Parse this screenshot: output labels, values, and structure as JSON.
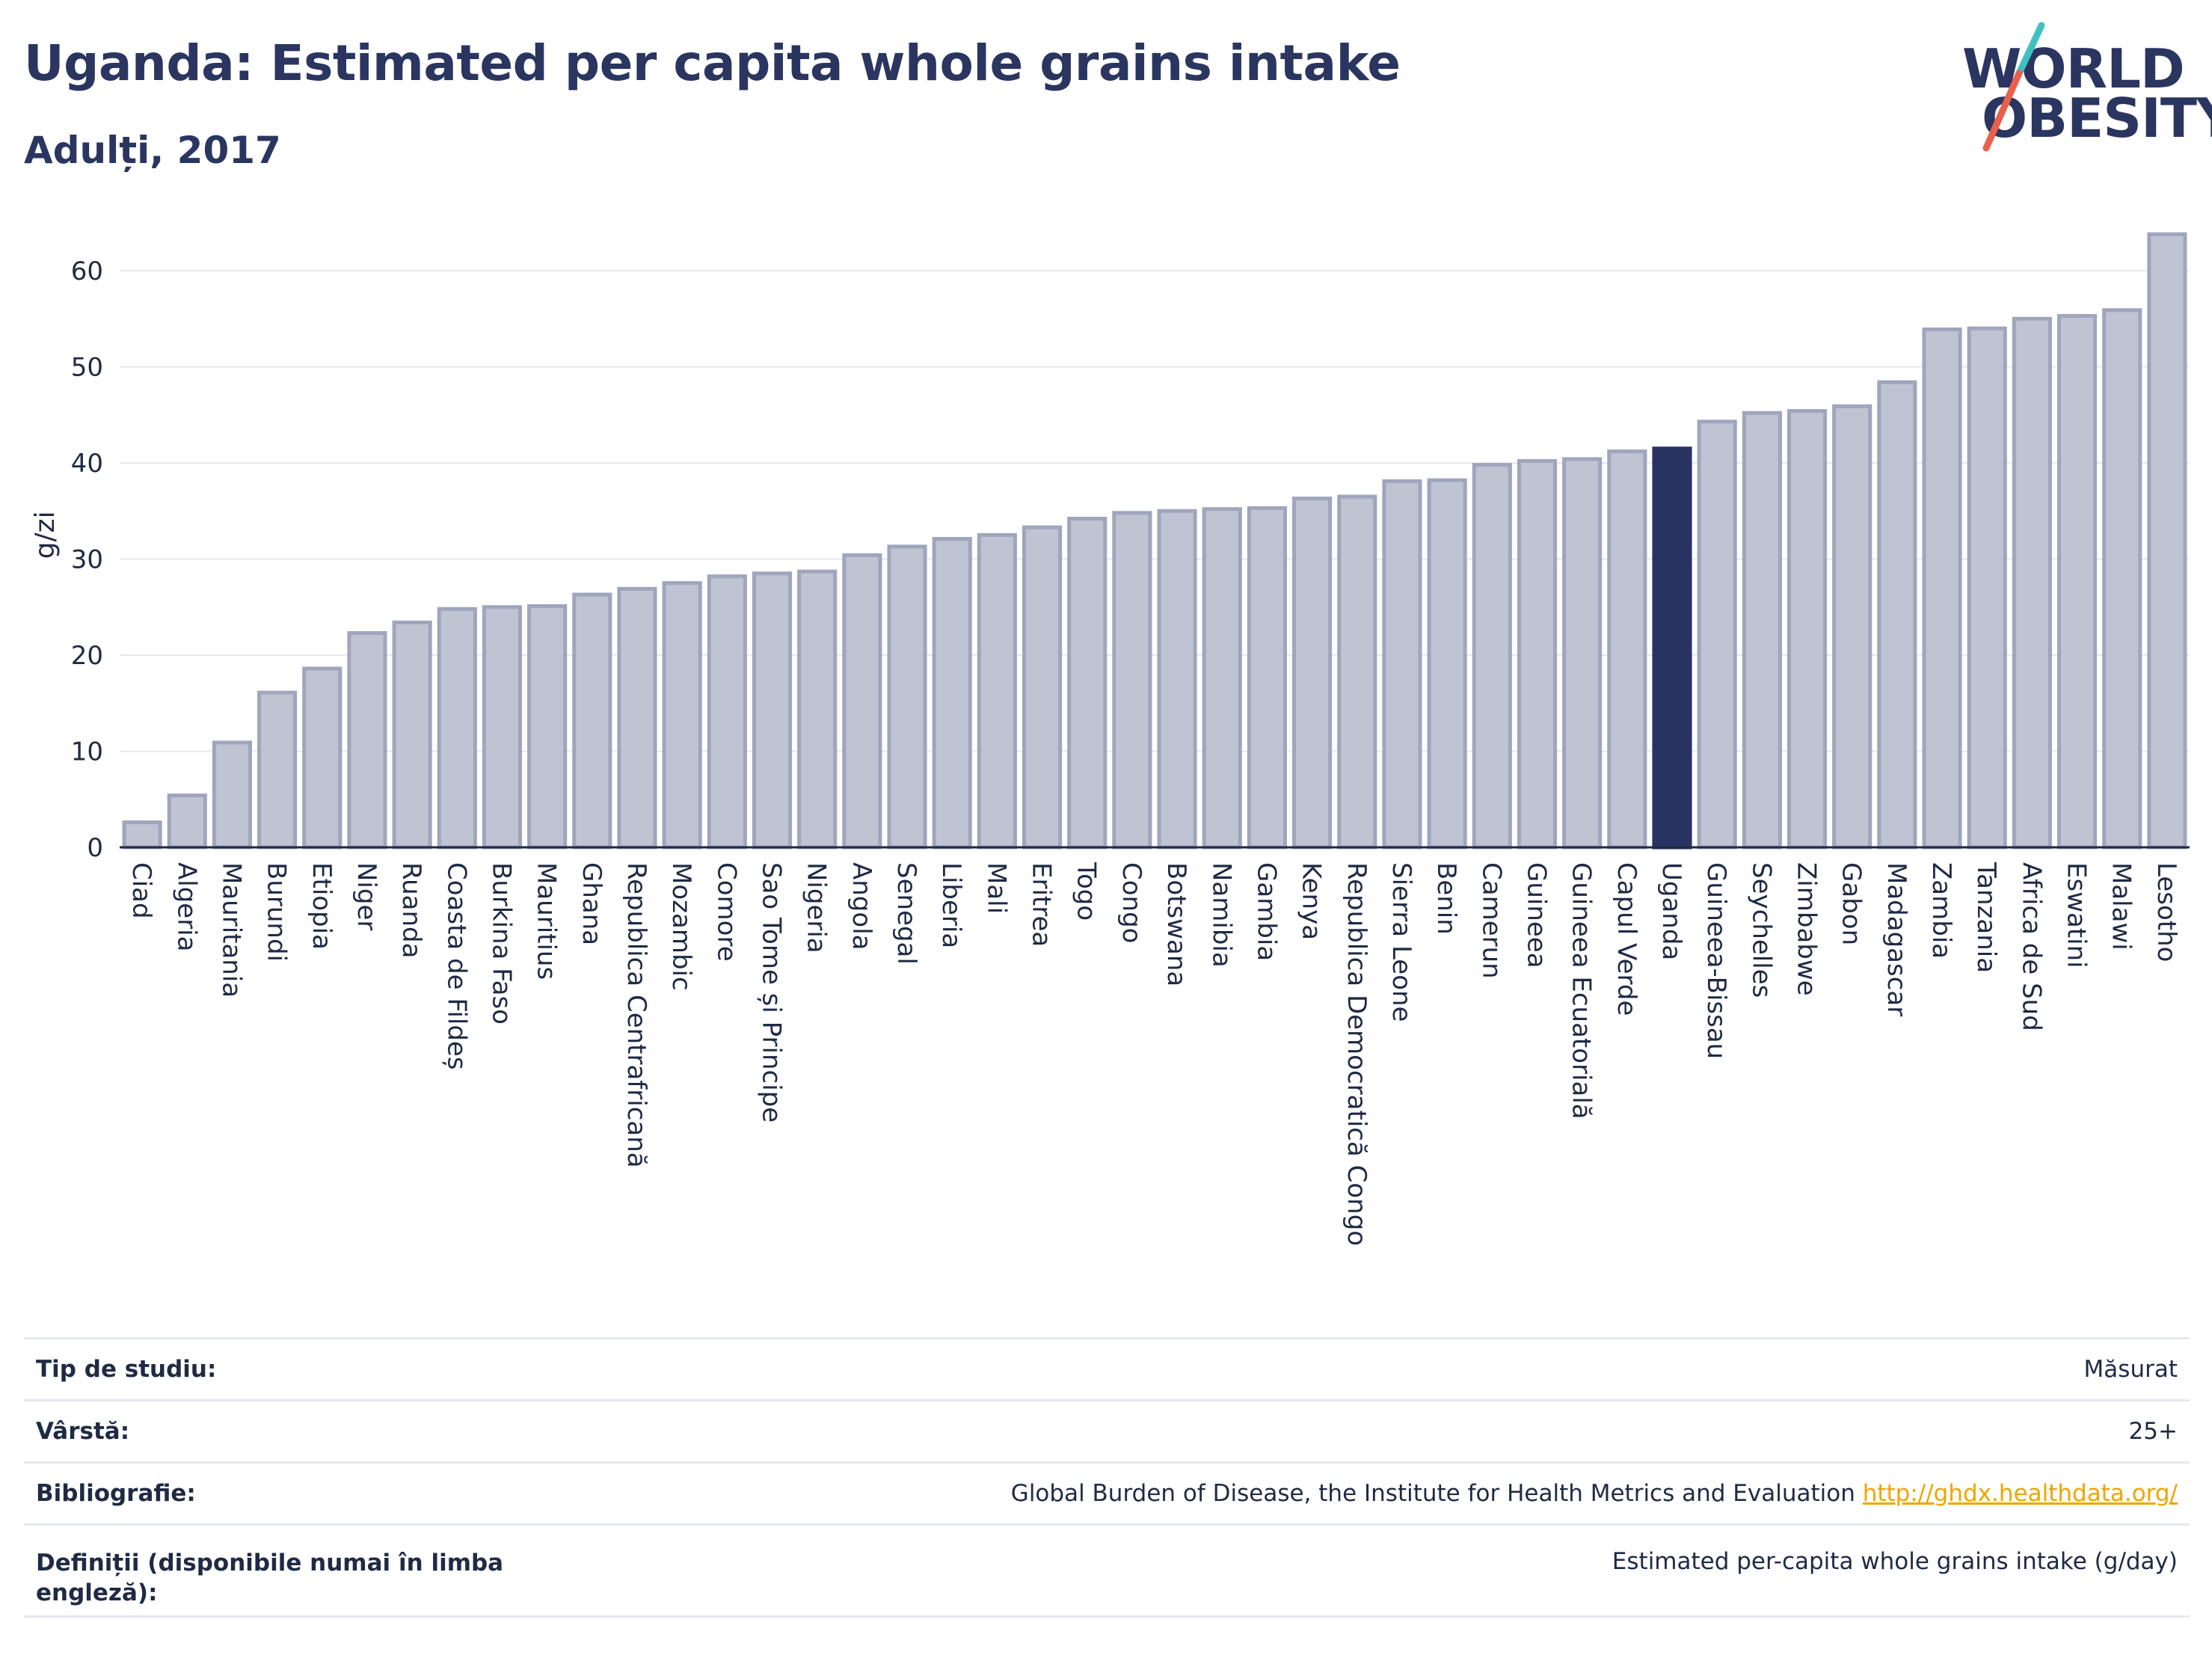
{
  "title": "Uganda: Estimated per capita whole grains intake",
  "subtitle": "Adulți, 2017",
  "logo": {
    "line1": "WORLD",
    "line2": "OBESITY",
    "accent_colors": [
      "#3fc1c0",
      "#e8604c"
    ]
  },
  "colors": {
    "bar": "#bfc3d2",
    "bar_border": "#9fa5bc",
    "highlight": "#283361",
    "grid": "#e6e8ef",
    "axis": "#1f2a44"
  },
  "chart_data": {
    "type": "bar",
    "ylabel": "g/zi",
    "xlabel": "",
    "ylim": [
      0,
      65
    ],
    "yticks": [
      0,
      10,
      20,
      30,
      40,
      50,
      60
    ],
    "highlight": "Uganda",
    "categories": [
      "Ciad",
      "Algeria",
      "Mauritania",
      "Burundi",
      "Etiopia",
      "Niger",
      "Ruanda",
      "Coasta de Fildeș",
      "Burkina Faso",
      "Mauritius",
      "Ghana",
      "Republica Centrafricană",
      "Mozambic",
      "Comore",
      "Sao Tome și Principe",
      "Nigeria",
      "Angola",
      "Senegal",
      "Liberia",
      "Mali",
      "Eritrea",
      "Togo",
      "Congo",
      "Botswana",
      "Namibia",
      "Gambia",
      "Kenya",
      "Republica Democratică Congo",
      "Sierra Leone",
      "Benin",
      "Camerun",
      "Guineea",
      "Guineea Ecuatorială",
      "Capul Verde",
      "Uganda",
      "Guineea-Bissau",
      "Seychelles",
      "Zimbabwe",
      "Gabon",
      "Madagascar",
      "Zambia",
      "Tanzania",
      "Africa de Sud",
      "Eswatini",
      "Malawi",
      "Lesotho"
    ],
    "values": [
      2.6,
      5.4,
      10.9,
      16.1,
      18.6,
      22.3,
      23.4,
      24.8,
      25.0,
      25.1,
      26.3,
      26.9,
      27.5,
      28.2,
      28.5,
      28.7,
      30.4,
      31.3,
      32.1,
      32.5,
      33.3,
      34.2,
      34.8,
      35.0,
      35.2,
      35.3,
      36.3,
      36.5,
      38.1,
      38.2,
      39.8,
      40.2,
      40.4,
      41.2,
      41.5,
      44.3,
      45.2,
      45.4,
      45.9,
      48.4,
      53.9,
      54.0,
      55.0,
      55.3,
      55.9,
      63.8
    ]
  },
  "info": [
    {
      "label": "Tip de studiu:",
      "value": "Măsurat"
    },
    {
      "label": "Vârstă:",
      "value": "25+"
    },
    {
      "label": "Bibliografie:",
      "value": "Global Burden of Disease, the Institute for Health Metrics and Evaluation",
      "link": "http://ghdx.healthdata.org/"
    },
    {
      "label": "Definiții (disponibile numai în limba engleză):",
      "value": "Estimated per-capita whole grains intake (g/day)"
    }
  ]
}
